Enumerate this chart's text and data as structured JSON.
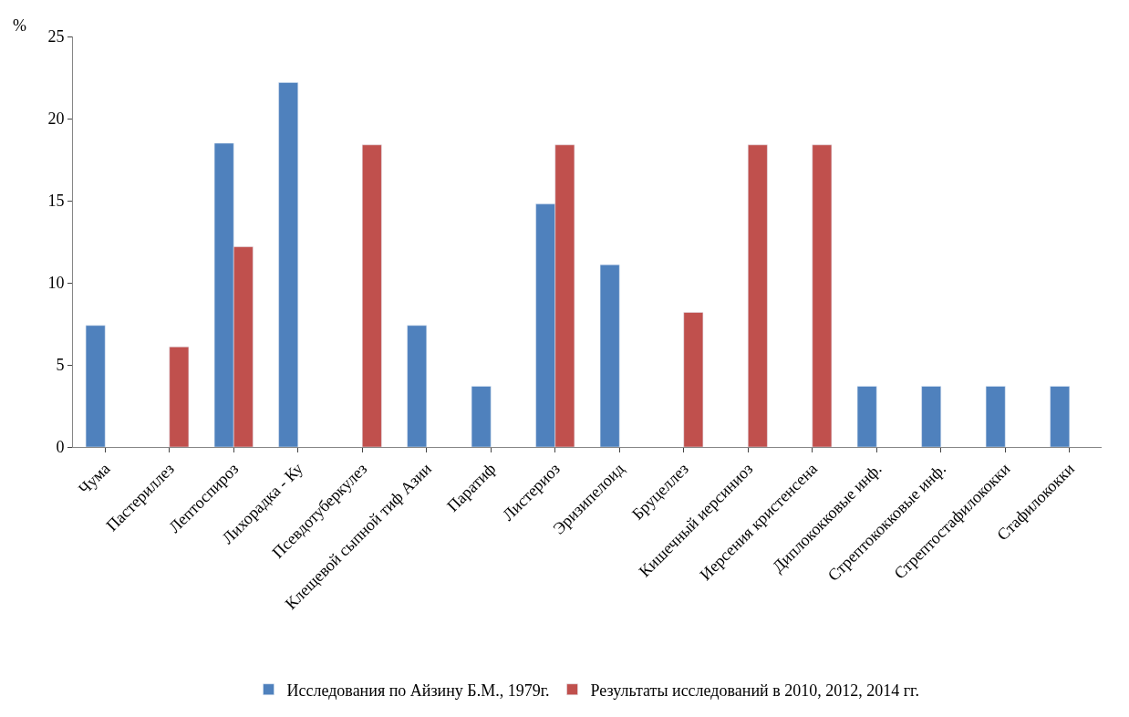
{
  "chart_data": {
    "type": "bar",
    "ylabel": "%",
    "categories": [
      "Чума",
      "Пастериллез",
      "Лептоспироз",
      "Лихорадка - Ку",
      "Псевдотуберкулез",
      "Клещевой сыпной тиф Азии",
      "Паратиф",
      "Листериоз",
      "Эризипелоид",
      "Бруцеллез",
      "Кишечный иерсиниоз",
      "Иерсения кристенсена",
      "Диплококковые инф.",
      "Стрептококковые инф.",
      "Стрептостафилококки",
      "Стафилококки"
    ],
    "series": [
      {
        "name": "Исследования по Айзину Б.М., 1979г.",
        "color": "#4f81bd",
        "values": [
          7.4,
          null,
          18.5,
          22.2,
          null,
          7.4,
          3.7,
          14.8,
          11.1,
          null,
          null,
          null,
          3.7,
          3.7,
          3.7,
          3.7
        ]
      },
      {
        "name": "Результаты исследований в 2010, 2012, 2014 гг.",
        "color": "#c0504d",
        "values": [
          null,
          6.1,
          12.2,
          null,
          18.4,
          null,
          null,
          18.4,
          null,
          8.2,
          18.4,
          18.4,
          null,
          null,
          null,
          null
        ]
      }
    ],
    "ylim": [
      0,
      25
    ],
    "yticks": [
      0,
      5,
      10,
      15,
      20,
      25
    ],
    "legend": "bottom"
  }
}
